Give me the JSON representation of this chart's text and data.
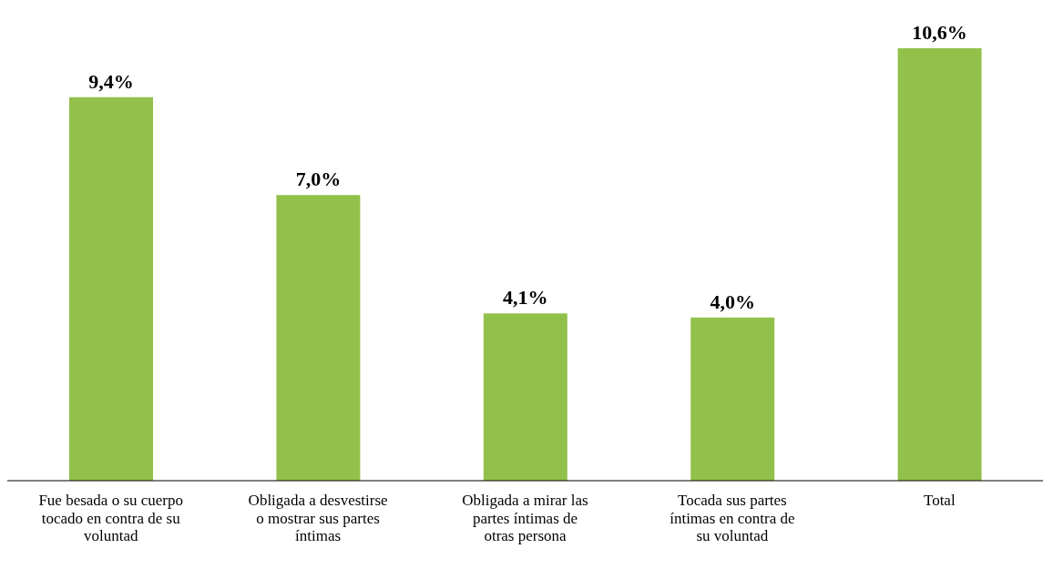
{
  "chart_data": {
    "type": "bar",
    "categories": [
      "Fue besada o su cuerpo tocado en contra de su voluntad",
      "Obligada a desvestirse o mostrar sus partes íntimas",
      "Obligada a mirar las partes íntimas de otras persona",
      "Tocada sus partes íntimas en contra de su voluntad",
      "Total"
    ],
    "values": [
      9.4,
      7.0,
      4.1,
      4.0,
      10.6
    ],
    "value_labels": [
      "9,4%",
      "7,0%",
      "4,1%",
      "4,0%",
      "10,6%"
    ],
    "color": "#92c14b"
  }
}
